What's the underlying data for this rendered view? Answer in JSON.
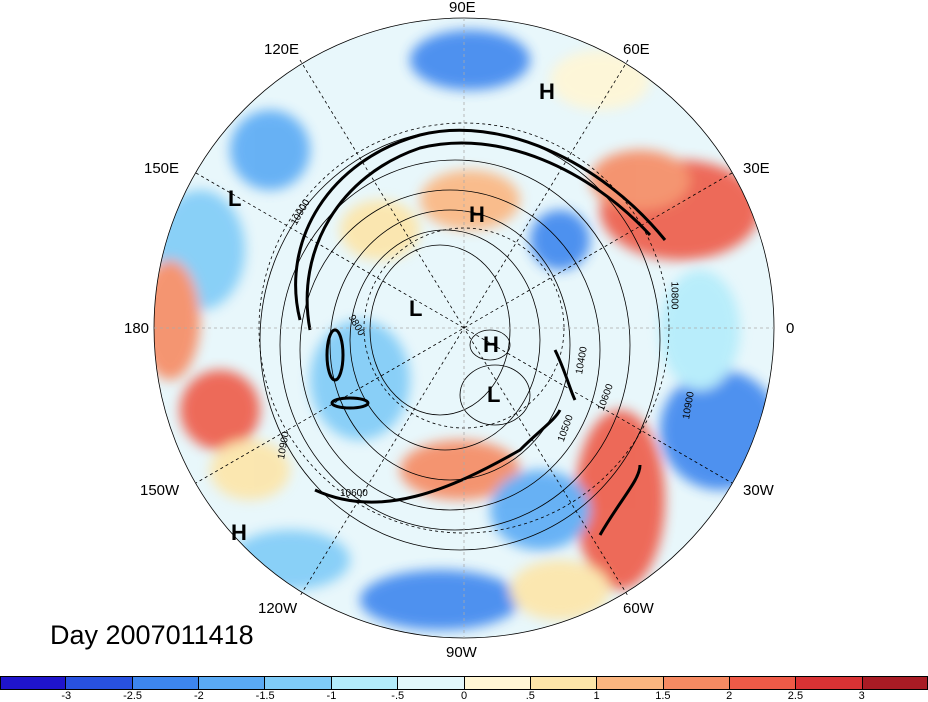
{
  "title": "Day 2007011418",
  "longitude_labels": {
    "l90e": "90E",
    "l60e": "60E",
    "l30e": "30E",
    "l0": "0",
    "l30w": "30W",
    "l60w": "60W",
    "l90w": "90W",
    "l120w": "120W",
    "l150w": "150W",
    "l180": "180",
    "l150e": "150E",
    "l120e": "120E"
  },
  "pressure_systems": {
    "h1": "H",
    "h2": "H",
    "h3": "H",
    "h4": "H",
    "l1": "L",
    "l2": "L",
    "l3": "L"
  },
  "contour_labels": [
    "10900",
    "10800",
    "10600",
    "10500",
    "10400",
    "10900",
    "9800",
    "10900",
    "10600"
  ],
  "colorbar": {
    "colors": [
      "#1f14cc",
      "#2851e0",
      "#3d86ee",
      "#5aaaf4",
      "#7fcbf7",
      "#b3ecfb",
      "#e2f7fb",
      "#fff6d4",
      "#fde5a8",
      "#fbb680",
      "#f68a62",
      "#ee5a47",
      "#d83234",
      "#a81b24"
    ],
    "ticks": [
      "-3",
      "-2.5",
      "-2",
      "-1.5",
      "-1",
      "-.5",
      "0",
      ".5",
      "1",
      "1.5",
      "2",
      "2.5",
      "3"
    ]
  }
}
